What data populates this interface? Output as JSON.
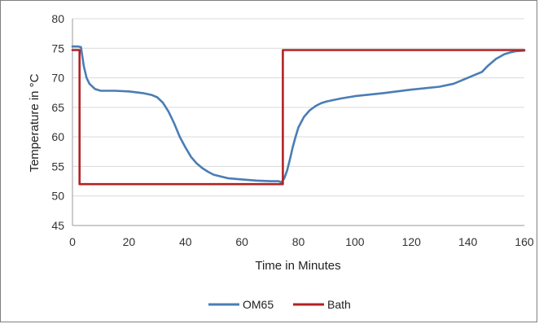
{
  "chart_data": {
    "type": "line",
    "title": "",
    "xlabel": "Time in Minutes",
    "ylabel": "Temperature in °C",
    "xlim": [
      0,
      160
    ],
    "ylim": [
      45,
      80
    ],
    "xticks": [
      0,
      20,
      40,
      60,
      80,
      100,
      120,
      140,
      160
    ],
    "yticks": [
      45,
      50,
      55,
      60,
      65,
      70,
      75,
      80
    ],
    "grid": {
      "horizontal": true,
      "vertical": false
    },
    "legend": "bottom",
    "series": [
      {
        "name": "OM65",
        "color": "#4a7db5",
        "x": [
          0,
          1,
          2,
          3,
          4,
          5,
          6,
          8,
          10,
          15,
          20,
          25,
          28,
          30,
          32,
          34,
          36,
          38,
          40,
          42,
          44,
          46,
          48,
          50,
          55,
          60,
          65,
          70,
          73,
          74,
          75,
          76,
          77,
          78,
          79,
          80,
          82,
          84,
          86,
          88,
          90,
          95,
          100,
          110,
          120,
          130,
          135,
          140,
          145,
          147,
          150,
          153,
          155,
          157,
          160
        ],
        "y": [
          75.3,
          75.3,
          75.3,
          75.2,
          72,
          70,
          69,
          68.1,
          67.8,
          67.8,
          67.7,
          67.4,
          67.1,
          66.7,
          65.8,
          64.3,
          62.3,
          60,
          58.2,
          56.6,
          55.5,
          54.7,
          54.1,
          53.6,
          53.0,
          52.8,
          52.6,
          52.5,
          52.5,
          52.3,
          53.0,
          54.3,
          56.2,
          58.3,
          60,
          61.6,
          63.4,
          64.5,
          65.2,
          65.7,
          66.0,
          66.5,
          66.9,
          67.4,
          68.0,
          68.5,
          69.0,
          70.0,
          71.0,
          72.0,
          73.2,
          74.0,
          74.3,
          74.5,
          74.6
        ]
      },
      {
        "name": "Bath",
        "color": "#b22222",
        "x": [
          0,
          2.5,
          2.5,
          74.5,
          74.5,
          160
        ],
        "y": [
          74.7,
          74.7,
          52.0,
          52.0,
          74.7,
          74.7
        ]
      }
    ]
  }
}
